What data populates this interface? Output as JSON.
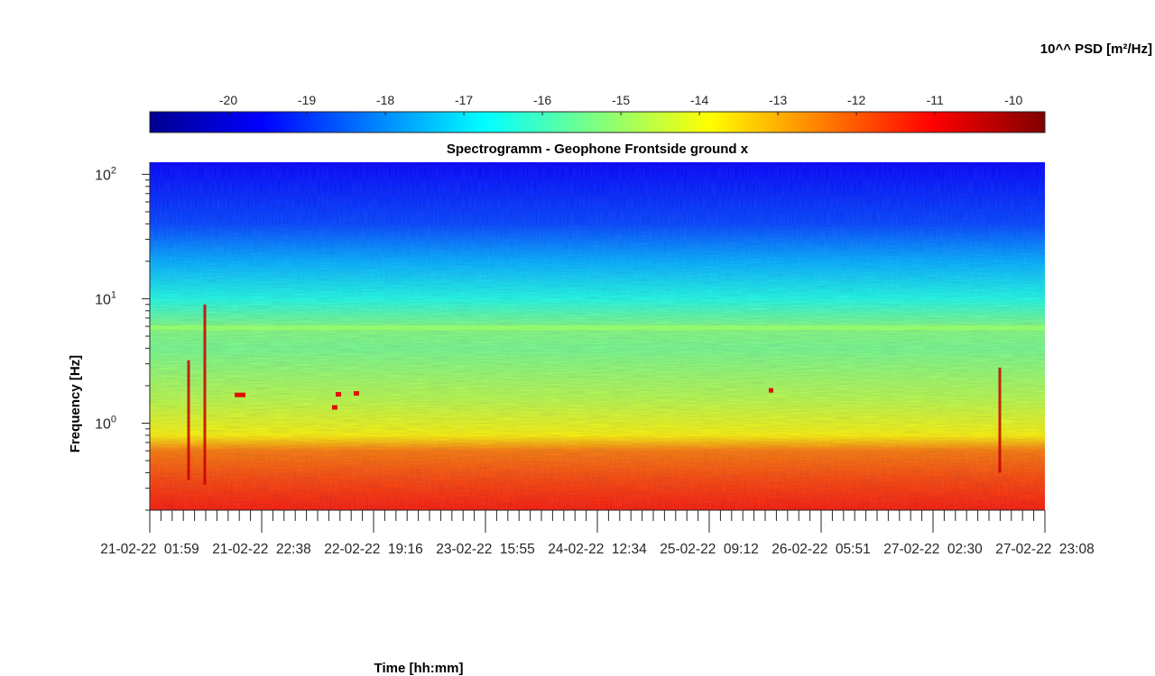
{
  "chart_data": {
    "type": "heatmap",
    "title": "Spectrogramm - Geophone Frontside ground x",
    "xlabel": "Time [hh:mm]",
    "ylabel": "Frequency [Hz]",
    "y_scale": "log",
    "ylim": [
      0.2,
      125
    ],
    "y_ticks": [
      {
        "value": 1,
        "base": "10",
        "exp": "0"
      },
      {
        "value": 10,
        "base": "10",
        "exp": "1"
      },
      {
        "value": 100,
        "base": "10",
        "exp": "2"
      }
    ],
    "x_range": [
      "21-02-22 01:59",
      "27-02-22 23:08"
    ],
    "x_ticks": [
      "21-02-22  01:59",
      "21-02-22  22:38",
      "22-02-22  19:16",
      "23-02-22  15:55",
      "24-02-22  12:34",
      "25-02-22  09:12",
      "26-02-22  05:51",
      "27-02-22  02:30",
      "27-02-22  23:08"
    ],
    "colorbar": {
      "label": "10^^ PSD [m²/Hz]",
      "colormap": "jet",
      "range": [
        -21,
        -9.6
      ],
      "ticks": [
        "-20",
        "-19",
        "-18",
        "-17",
        "-16",
        "-15",
        "-14",
        "-13",
        "-12",
        "-11",
        "-10"
      ]
    },
    "psd_profile": {
      "frequency_hz": [
        0.2,
        0.35,
        0.6,
        0.8,
        1.5,
        4,
        5.8,
        10,
        20,
        40,
        125
      ],
      "log10_psd": [
        -11.3,
        -11.8,
        -12.4,
        -13.8,
        -14.6,
        -15.4,
        -15.2,
        -16.4,
        -17.6,
        -18.8,
        -19.6
      ]
    },
    "grid": false,
    "legend": "none"
  }
}
